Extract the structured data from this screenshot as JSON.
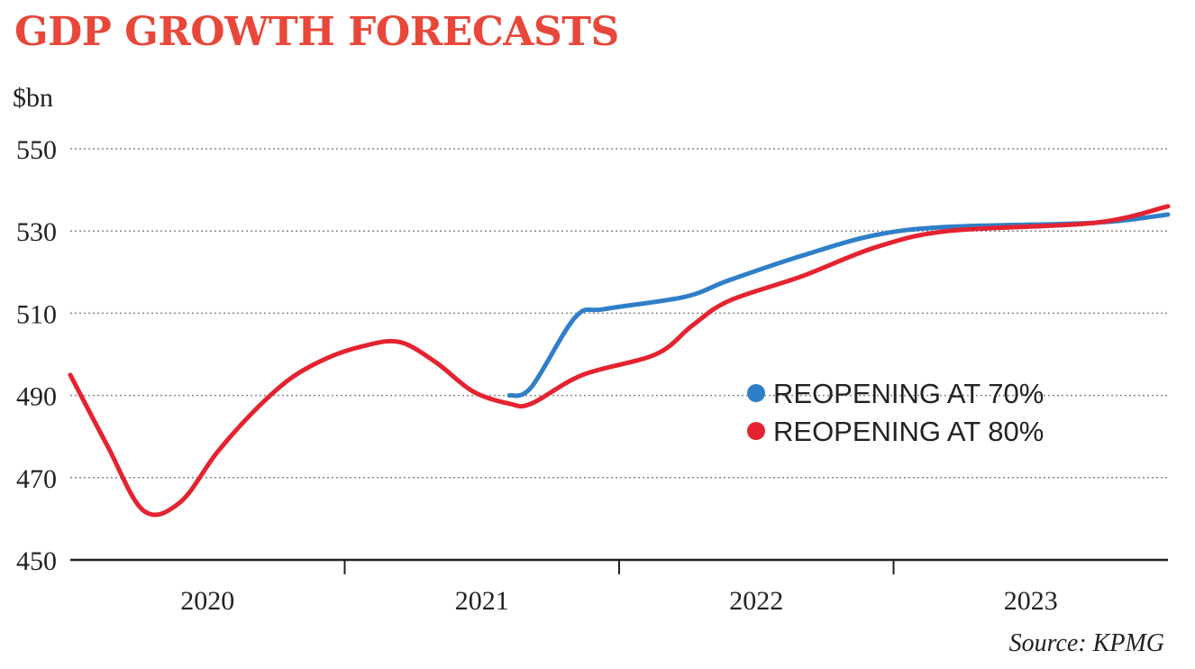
{
  "title": "GDP GROWTH FORECASTS",
  "source": "Source: KPMG",
  "chart_data": {
    "type": "line",
    "title": "GDP GROWTH FORECASTS",
    "ylabel": "$bn",
    "xlabel": "",
    "ylim": [
      450,
      550
    ],
    "yticks": [
      450,
      470,
      490,
      510,
      530,
      550
    ],
    "xlim": [
      0,
      15
    ],
    "x_tick_labels": [
      "2020",
      "2021",
      "2022",
      "2023"
    ],
    "grid": "horizontal dotted",
    "legend_position": "right",
    "series": [
      {
        "name": "REOPENING AT 70%",
        "color": "#2f7fc8",
        "x": [
          6.0,
          6.3,
          6.9,
          7.3,
          8.4,
          9.0,
          10.0,
          11.0,
          12.0,
          14.0,
          15.0
        ],
        "y": [
          490,
          492,
          509,
          511,
          514,
          518,
          524,
          529,
          531,
          532,
          534
        ]
      },
      {
        "name": "REOPENING AT 80%",
        "color": "#e52330",
        "x": [
          0.0,
          0.5,
          1.0,
          1.5,
          2.0,
          2.5,
          3.0,
          3.5,
          4.0,
          4.5,
          5.0,
          5.5,
          6.0,
          6.3,
          7.0,
          8.0,
          8.5,
          9.0,
          10.0,
          11.0,
          12.0,
          14.0,
          15.0
        ],
        "y": [
          495,
          478,
          462,
          464,
          476,
          486,
          494,
          499,
          502,
          503,
          498,
          491,
          488,
          488,
          495,
          500,
          507,
          513,
          519,
          526,
          530,
          532,
          536
        ]
      }
    ]
  }
}
